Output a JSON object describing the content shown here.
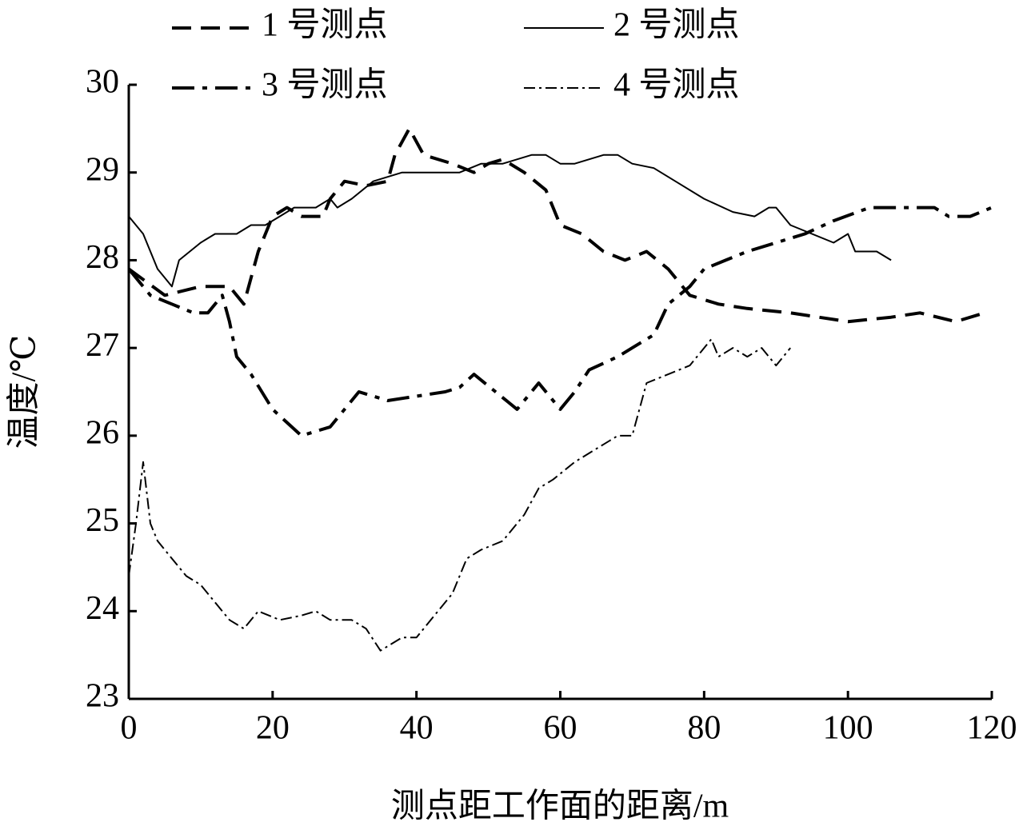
{
  "chart_data": {
    "type": "line",
    "xlabel": "测点距工作面的距离/m",
    "ylabel": "温度/℃",
    "xlim": [
      0,
      120
    ],
    "xticks": [
      0,
      20,
      40,
      60,
      80,
      100,
      120
    ],
    "ylim": [
      23,
      30
    ],
    "yticks": [
      23,
      24,
      25,
      26,
      27,
      28,
      29,
      30
    ],
    "grid": false,
    "legend": "top",
    "series": [
      {
        "name": "1 号测点",
        "color": "#000000",
        "line_style": "dashed",
        "line_width": 4,
        "x": [
          0,
          5,
          10,
          14,
          16,
          18,
          20,
          22,
          24,
          27,
          28,
          30,
          33,
          36,
          37,
          39,
          41,
          45,
          48,
          50,
          52,
          55,
          58,
          60,
          63,
          66,
          69,
          72,
          75,
          78,
          82,
          86,
          92,
          100,
          106,
          110,
          115,
          119
        ],
        "values": [
          27.9,
          27.6,
          27.7,
          27.7,
          27.5,
          28.1,
          28.5,
          28.6,
          28.5,
          28.5,
          28.7,
          28.9,
          28.85,
          28.9,
          29.2,
          29.5,
          29.2,
          29.1,
          29.0,
          29.1,
          29.15,
          29.0,
          28.8,
          28.4,
          28.3,
          28.1,
          28.0,
          28.1,
          27.9,
          27.6,
          27.5,
          27.45,
          27.4,
          27.3,
          27.35,
          27.4,
          27.3,
          27.4
        ]
      },
      {
        "name": "2 号测点",
        "color": "#000000",
        "line_style": "solid",
        "line_width": 2,
        "x": [
          0,
          2,
          4,
          6,
          7,
          10,
          12,
          15,
          17,
          19,
          21,
          23,
          26,
          28,
          29,
          31,
          34,
          38,
          42,
          46,
          49,
          52,
          56,
          58,
          60,
          62,
          66,
          68,
          70,
          73,
          76,
          80,
          84,
          87,
          89,
          90,
          92,
          95,
          98,
          100,
          101,
          104,
          106
        ],
        "values": [
          28.5,
          28.3,
          27.9,
          27.7,
          28.0,
          28.2,
          28.3,
          28.3,
          28.4,
          28.4,
          28.5,
          28.6,
          28.6,
          28.7,
          28.6,
          28.7,
          28.9,
          29.0,
          29.0,
          29.0,
          29.1,
          29.1,
          29.2,
          29.2,
          29.1,
          29.1,
          29.2,
          29.2,
          29.1,
          29.05,
          28.9,
          28.7,
          28.55,
          28.5,
          28.6,
          28.6,
          28.4,
          28.3,
          28.2,
          28.3,
          28.1,
          28.1,
          28.0
        ]
      },
      {
        "name": "3 号测点",
        "color": "#000000",
        "line_style": "dashdot",
        "line_width": 4,
        "x": [
          0,
          3,
          6,
          9,
          11,
          13,
          14,
          15,
          17,
          20,
          24,
          28,
          30,
          32,
          36,
          40,
          44,
          46,
          48,
          51,
          54,
          57,
          60,
          62,
          64,
          68,
          70,
          73,
          75,
          78,
          80,
          83,
          86,
          90,
          94,
          98,
          103,
          108,
          112,
          114,
          117,
          120
        ],
        "values": [
          27.9,
          27.6,
          27.5,
          27.4,
          27.4,
          27.6,
          27.3,
          26.9,
          26.7,
          26.3,
          26.0,
          26.1,
          26.3,
          26.5,
          26.4,
          26.45,
          26.5,
          26.55,
          26.7,
          26.5,
          26.3,
          26.6,
          26.3,
          26.5,
          26.75,
          26.9,
          27.0,
          27.15,
          27.5,
          27.7,
          27.9,
          28.0,
          28.1,
          28.2,
          28.3,
          28.45,
          28.6,
          28.6,
          28.6,
          28.5,
          28.5,
          28.6
        ]
      },
      {
        "name": "4 号测点",
        "color": "#000000",
        "line_style": "dashdot",
        "line_width": 2,
        "x": [
          0,
          1,
          2,
          3,
          4,
          6,
          8,
          10,
          14,
          16,
          18,
          21,
          24,
          26,
          28,
          31,
          33,
          35,
          38,
          40,
          42,
          45,
          47,
          49,
          52,
          55,
          57,
          59,
          62,
          66,
          68,
          70,
          72,
          75,
          78,
          81,
          82,
          84,
          86,
          88,
          90,
          92
        ],
        "values": [
          24.4,
          25.0,
          25.7,
          25.0,
          24.8,
          24.6,
          24.4,
          24.3,
          23.9,
          23.8,
          24.0,
          23.9,
          23.95,
          24.0,
          23.9,
          23.9,
          23.8,
          23.55,
          23.7,
          23.7,
          23.9,
          24.2,
          24.6,
          24.7,
          24.8,
          25.1,
          25.4,
          25.5,
          25.7,
          25.9,
          26.0,
          26.0,
          26.6,
          26.7,
          26.8,
          27.1,
          26.9,
          27.0,
          26.9,
          27.0,
          26.8,
          27.0
        ]
      }
    ]
  }
}
